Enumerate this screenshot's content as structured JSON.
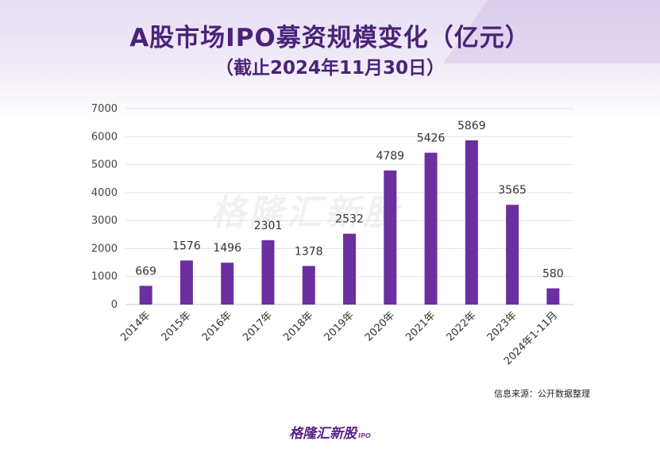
{
  "header": {
    "title": "A股市场IPO募资规模变化（亿元）",
    "subtitle": "（截止2024年11月30日）"
  },
  "watermark": "格隆汇新股",
  "source": "信息来源：公开数据整理",
  "footer": {
    "logo_text": "格隆汇新股",
    "logo_suffix": "IPO"
  },
  "colors": {
    "bar": "#6b2fa0",
    "title": "#4a2378"
  },
  "chart_data": {
    "type": "bar",
    "title": "A股市场IPO募资规模变化（亿元）",
    "subtitle": "（截止2024年11月30日）",
    "categories": [
      "2014年",
      "2015年",
      "2016年",
      "2017年",
      "2018年",
      "2019年",
      "2020年",
      "2021年",
      "2022年",
      "2023年",
      "2024年1-11月"
    ],
    "values": [
      669,
      1576,
      1496,
      2301,
      1378,
      2532,
      4789,
      5426,
      5869,
      3565,
      580
    ],
    "ylim": [
      0,
      7000
    ],
    "yticks": [
      0,
      1000,
      2000,
      3000,
      4000,
      5000,
      6000,
      7000
    ],
    "xlabel": "",
    "ylabel": "",
    "grid": true
  }
}
